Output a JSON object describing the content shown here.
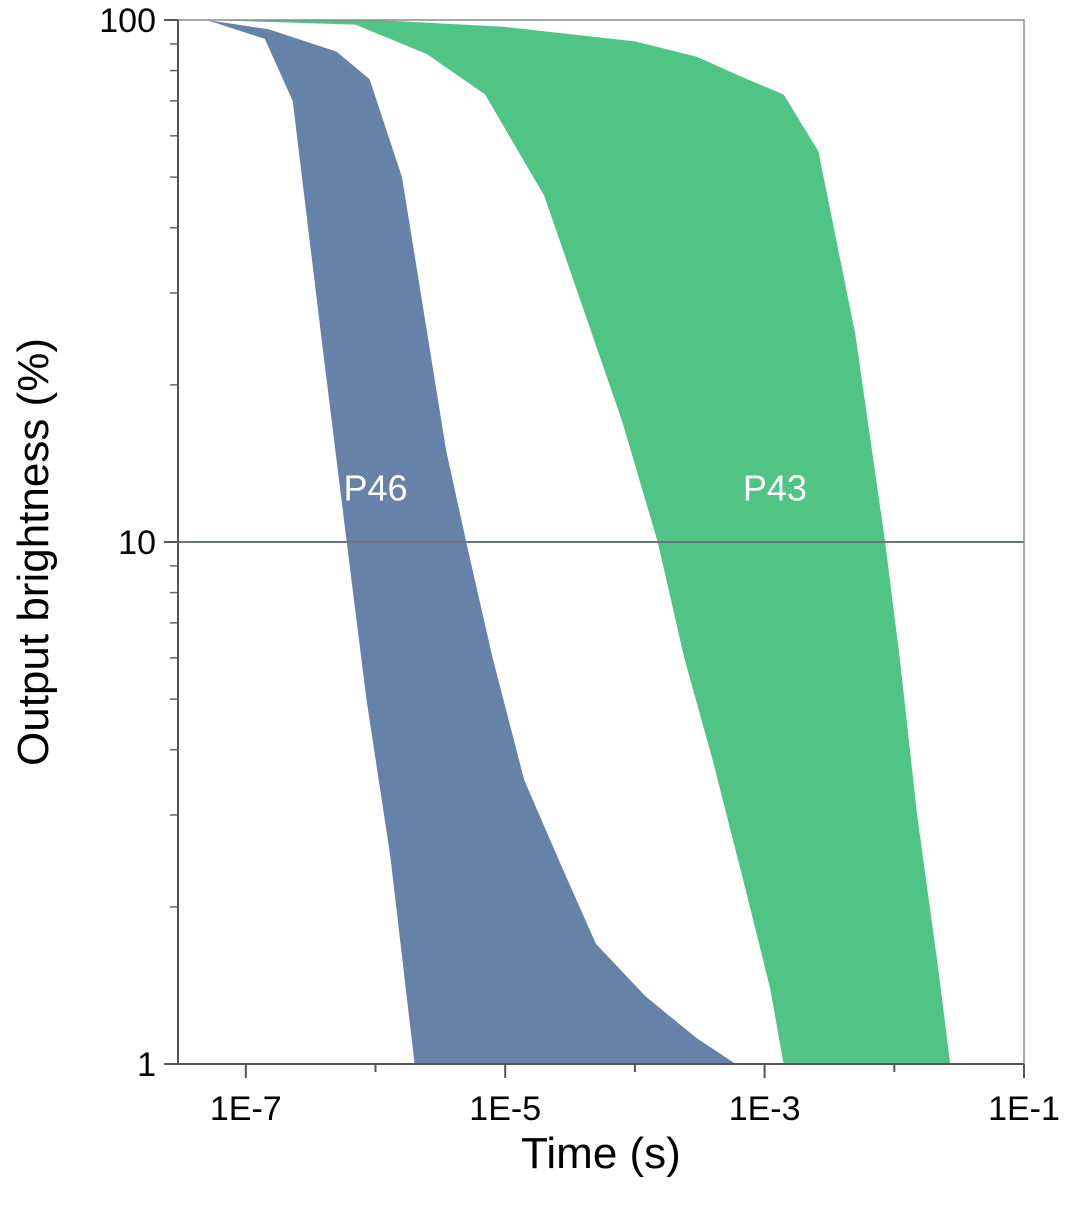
{
  "chart_data": {
    "type": "area",
    "xlabel": "Time (s)",
    "ylabel": "Output brightness (%)",
    "x_scale": "log",
    "y_scale": "log",
    "xlim": [
      3e-08,
      0.1
    ],
    "ylim": [
      1,
      100
    ],
    "x_ticks": [
      {
        "value": 1e-07,
        "label": "1E-7"
      },
      {
        "value": 1e-05,
        "label": "1E-5"
      },
      {
        "value": 0.001,
        "label": "1E-3"
      },
      {
        "value": 0.1,
        "label": "1E-1"
      }
    ],
    "y_ticks": [
      {
        "value": 1,
        "label": "1"
      },
      {
        "value": 10,
        "label": "10"
      },
      {
        "value": 100,
        "label": "100"
      }
    ],
    "reference_line": {
      "y": 10,
      "color": "#6a7380"
    },
    "series": [
      {
        "name": "P46",
        "color": "#6682a8",
        "label_position": {
          "x": 1e-06,
          "y": 12
        },
        "fast_edge": [
          [
            5e-08,
            100
          ],
          [
            1.4e-07,
            92
          ],
          [
            2.3e-07,
            70
          ],
          [
            3.8e-07,
            25
          ],
          [
            6e-07,
            10
          ],
          [
            8.5e-07,
            5
          ],
          [
            1.3e-06,
            2.5
          ],
          [
            2e-06,
            1.0
          ]
        ],
        "slow_edge": [
          [
            5e-08,
            100
          ],
          [
            1.5e-07,
            96
          ],
          [
            5e-07,
            87
          ],
          [
            9e-07,
            77
          ],
          [
            1.6e-06,
            50
          ],
          [
            3.5e-06,
            15
          ],
          [
            5e-06,
            10
          ],
          [
            8e-06,
            6
          ],
          [
            1.4e-05,
            3.5
          ],
          [
            2.7e-05,
            2.4
          ],
          [
            5e-05,
            1.7
          ],
          [
            0.00012,
            1.35
          ],
          [
            0.0003,
            1.12
          ],
          [
            0.0006,
            1.0
          ]
        ]
      },
      {
        "name": "P43",
        "color": "#4fc485",
        "label_position": {
          "x": 0.0012,
          "y": 12
        },
        "fast_edge": [
          [
            5e-08,
            100
          ],
          [
            7e-07,
            98
          ],
          [
            2.5e-06,
            86
          ],
          [
            7e-06,
            72
          ],
          [
            2e-05,
            46
          ],
          [
            8e-05,
            17
          ],
          [
            0.00015,
            10
          ],
          [
            0.00024,
            6
          ],
          [
            0.0004,
            3.8
          ],
          [
            0.0007,
            2.2
          ],
          [
            0.0011,
            1.4
          ],
          [
            0.0014,
            1.0
          ]
        ],
        "slow_edge": [
          [
            5e-08,
            100
          ],
          [
            1e-06,
            100
          ],
          [
            1e-05,
            97
          ],
          [
            0.0001,
            91
          ],
          [
            0.0003,
            85
          ],
          [
            0.00065,
            78
          ],
          [
            0.0014,
            72
          ],
          [
            0.0026,
            56
          ],
          [
            0.005,
            25
          ],
          [
            0.0085,
            10
          ],
          [
            0.011,
            6
          ],
          [
            0.015,
            3
          ],
          [
            0.022,
            1.5
          ],
          [
            0.027,
            1.0
          ]
        ]
      }
    ]
  }
}
